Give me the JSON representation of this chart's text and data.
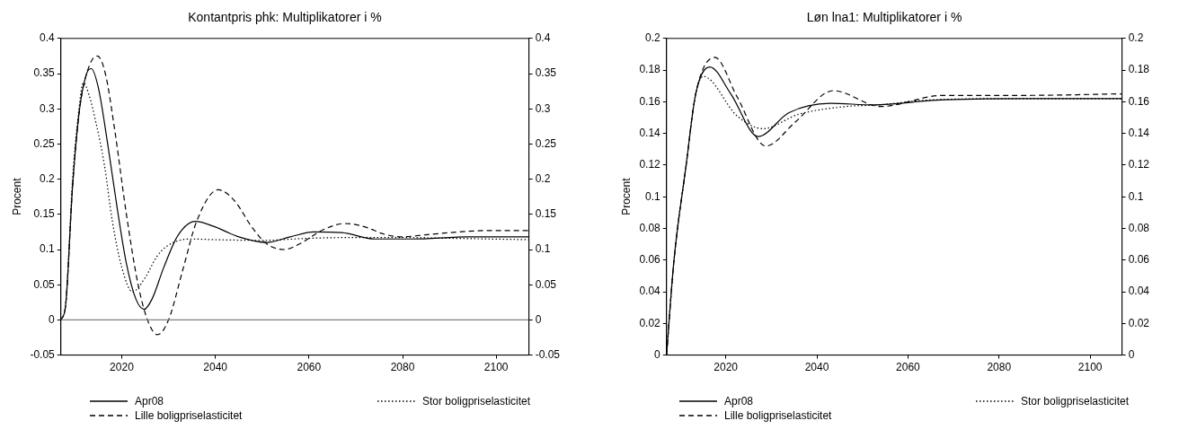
{
  "chart_data": [
    {
      "type": "line",
      "title": "Kontantpris phk: Multiplikatorer i %",
      "ylabel": "Procent",
      "xlim": [
        2007,
        2107
      ],
      "xticks": [
        2020,
        2040,
        2060,
        2080,
        2100
      ],
      "ylim": [
        -0.05,
        0.4
      ],
      "yticks": [
        -0.05,
        0,
        0.05,
        0.1,
        0.15,
        0.2,
        0.25,
        0.3,
        0.35,
        0.4
      ],
      "y2lim": [
        -0.05,
        0.4
      ],
      "y2ticks": [
        -0.05,
        0,
        0.05,
        0.1,
        0.15,
        0.2,
        0.25,
        0.3,
        0.35,
        0.4
      ],
      "legend": "bottom",
      "ref_lines": [
        {
          "axis": "y",
          "value": 0,
          "color": "#808080"
        }
      ],
      "series": [
        {
          "name": "Apr08",
          "color": "#000000",
          "line_style": "solid",
          "x": [
            2007,
            2008,
            2009.5,
            2011,
            2012.5,
            2013.5,
            2015,
            2017,
            2019,
            2021,
            2023,
            2024.8,
            2026.5,
            2029,
            2032,
            2035.7,
            2040,
            2045,
            2051,
            2056,
            2061,
            2067,
            2074,
            2082,
            2094,
            2107
          ],
          "values": [
            0,
            0.02,
            0.19,
            0.3,
            0.35,
            0.357,
            0.33,
            0.25,
            0.16,
            0.08,
            0.03,
            0.015,
            0.03,
            0.075,
            0.12,
            0.14,
            0.132,
            0.118,
            0.11,
            0.118,
            0.125,
            0.124,
            0.115,
            0.115,
            0.118,
            0.118
          ]
        },
        {
          "name": "Lille boligpriselasticitet",
          "color": "#000000",
          "line_style": "dashed",
          "x": [
            2007,
            2008,
            2009.5,
            2011,
            2013,
            2014.8,
            2016.5,
            2018.5,
            2021,
            2023.5,
            2025.5,
            2027.6,
            2030,
            2033,
            2036,
            2040.6,
            2044,
            2048,
            2051,
            2054.7,
            2058,
            2063,
            2067.7,
            2072,
            2076,
            2079.6,
            2085,
            2092,
            2098.5,
            2107
          ],
          "values": [
            0,
            0.02,
            0.19,
            0.3,
            0.36,
            0.375,
            0.35,
            0.27,
            0.15,
            0.05,
            0,
            -0.021,
            0,
            0.07,
            0.14,
            0.185,
            0.17,
            0.13,
            0.108,
            0.1,
            0.108,
            0.128,
            0.137,
            0.132,
            0.122,
            0.118,
            0.121,
            0.125,
            0.127,
            0.127
          ]
        },
        {
          "name": "Stor boligpriselasticitet",
          "color": "#000000",
          "line_style": "dotted",
          "x": [
            2007,
            2008,
            2009.5,
            2010.7,
            2011.8,
            2013,
            2014.5,
            2016.3,
            2018,
            2020,
            2022.3,
            2025,
            2027.5,
            2029.7,
            2034.6,
            2040,
            2050,
            2060,
            2068,
            2080,
            2090,
            2107
          ],
          "values": [
            0,
            0.02,
            0.2,
            0.29,
            0.337,
            0.32,
            0.28,
            0.22,
            0.14,
            0.075,
            0.04,
            0.06,
            0.09,
            0.105,
            0.115,
            0.114,
            0.113,
            0.116,
            0.117,
            0.117,
            0.116,
            0.114
          ]
        }
      ]
    },
    {
      "type": "line",
      "title": "Løn lna1: Multiplikatorer i %",
      "ylabel": "Procent",
      "xlim": [
        2007,
        2107
      ],
      "xticks": [
        2020,
        2040,
        2060,
        2080,
        2100
      ],
      "ylim": [
        0,
        0.2
      ],
      "yticks": [
        0,
        0.02,
        0.04,
        0.06,
        0.08,
        0.1,
        0.12,
        0.14,
        0.16,
        0.18,
        0.2
      ],
      "y2lim": [
        0,
        0.2
      ],
      "y2ticks": [
        0,
        0.02,
        0.04,
        0.06,
        0.08,
        0.1,
        0.12,
        0.14,
        0.16,
        0.18,
        0.2
      ],
      "legend": "bottom",
      "series": [
        {
          "name": "Apr08",
          "color": "#000000",
          "line_style": "solid",
          "x": [
            2007,
            2008.6,
            2011.3,
            2013.4,
            2016.5,
            2021.1,
            2027.1,
            2033.8,
            2042.9,
            2052.5,
            2066.2,
            2085.2,
            2107
          ],
          "values": [
            0,
            0.059,
            0.12,
            0.165,
            0.182,
            0.165,
            0.138,
            0.153,
            0.159,
            0.158,
            0.161,
            0.162,
            0.162
          ]
        },
        {
          "name": "Lille boligpriselasticitet",
          "color": "#000000",
          "line_style": "dashed",
          "x": [
            2007,
            2008.6,
            2011.3,
            2013.4,
            2017.6,
            2022.5,
            2028.8,
            2035.2,
            2043.6,
            2054,
            2067.6,
            2085.2,
            2107
          ],
          "values": [
            0,
            0.059,
            0.12,
            0.165,
            0.188,
            0.163,
            0.132,
            0.147,
            0.167,
            0.157,
            0.164,
            0.164,
            0.165
          ]
        },
        {
          "name": "Stor boligpriselasticitet",
          "color": "#000000",
          "line_style": "dotted",
          "x": [
            2007,
            2008.6,
            2011.3,
            2013.4,
            2015.1,
            2022.5,
            2028.2,
            2035.9,
            2046.5,
            2053.5,
            2064,
            2085,
            2107
          ],
          "values": [
            0,
            0.059,
            0.12,
            0.165,
            0.176,
            0.151,
            0.143,
            0.152,
            0.157,
            0.158,
            0.161,
            0.162,
            0.162
          ]
        }
      ]
    }
  ]
}
